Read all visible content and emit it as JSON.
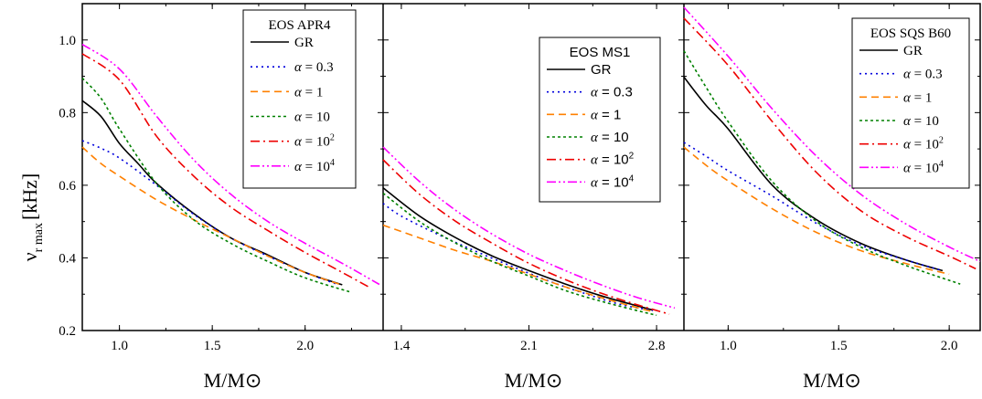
{
  "chart_data": {
    "type": "line",
    "ylabel": "ν",
    "ylabel_sub": "r max",
    "ylabel_unit": "[kHz]",
    "ylim": [
      0.2,
      1.1
    ],
    "yticks": [
      0.2,
      0.4,
      0.6,
      0.8,
      1.0
    ],
    "ytick_labels": [
      "0.2",
      "0.4",
      "0.6",
      "0.8",
      "1.0"
    ],
    "grid": false,
    "legend_position": "top-right",
    "style_defs": {
      "GR": {
        "color": "#000000",
        "dash": ""
      },
      "alpha_0.3": {
        "color": "#0000dd",
        "dash": "2,4"
      },
      "alpha_1": {
        "color": "#ff8000",
        "dash": "8,5"
      },
      "alpha_10": {
        "color": "#008000",
        "dash": "3,3"
      },
      "alpha_100": {
        "color": "#ee0000",
        "dash": "10,4,2,4"
      },
      "alpha_1e4": {
        "color": "#ff00ff",
        "dash": "10,3,2,3,2,3"
      }
    },
    "panels": [
      {
        "title": "EOS APR4",
        "xlabel": "M/M⊙",
        "xlim": [
          0.8,
          2.42
        ],
        "xticks": [
          1.0,
          1.5,
          2.0
        ],
        "xtick_labels": [
          "1.0",
          "1.5",
          "2.0"
        ],
        "legend_font": "serif",
        "series": [
          {
            "name": "GR",
            "style": "GR",
            "x": [
              0.8,
              0.9,
              1.0,
              1.1,
              1.2,
              1.4,
              1.6,
              1.8,
              2.0,
              2.2
            ],
            "y": [
              0.833,
              0.79,
              0.715,
              0.66,
              0.605,
              0.522,
              0.455,
              0.408,
              0.36,
              0.326
            ]
          },
          {
            "name": "α = 0.3",
            "style": "alpha_0.3",
            "x": [
              0.8,
              0.9,
              1.0,
              1.2,
              1.4,
              1.6,
              1.8,
              2.0,
              2.18
            ],
            "y": [
              0.723,
              0.702,
              0.675,
              0.6,
              0.52,
              0.455,
              0.405,
              0.36,
              0.326
            ]
          },
          {
            "name": "α = 1",
            "style": "alpha_1",
            "x": [
              0.8,
              0.9,
              1.0,
              1.2,
              1.4,
              1.6,
              1.8,
              2.0,
              2.2
            ],
            "y": [
              0.705,
              0.66,
              0.625,
              0.56,
              0.505,
              0.455,
              0.405,
              0.36,
              0.325
            ]
          },
          {
            "name": "α = 10",
            "style": "alpha_10",
            "x": [
              0.8,
              0.9,
              1.0,
              1.2,
              1.4,
              1.6,
              1.8,
              2.0,
              2.25
            ],
            "y": [
              0.895,
              0.84,
              0.755,
              0.605,
              0.505,
              0.44,
              0.39,
              0.345,
              0.305
            ]
          },
          {
            "name": "α = 10^2",
            "style": "alpha_100",
            "x": [
              0.8,
              1.0,
              1.2,
              1.4,
              1.6,
              1.8,
              2.0,
              2.2,
              2.35
            ],
            "y": [
              0.962,
              0.89,
              0.735,
              0.625,
              0.54,
              0.475,
              0.415,
              0.36,
              0.318
            ]
          },
          {
            "name": "α = 10^4",
            "style": "alpha_1e4",
            "x": [
              0.8,
              1.0,
              1.2,
              1.4,
              1.6,
              1.8,
              2.0,
              2.2,
              2.4
            ],
            "y": [
              0.988,
              0.92,
              0.79,
              0.67,
              0.575,
              0.5,
              0.44,
              0.385,
              0.327
            ]
          }
        ]
      },
      {
        "title": "EOS MS1",
        "xlabel": "M/M⊙",
        "xlim": [
          1.3,
          2.95
        ],
        "xticks": [
          1.4,
          2.1,
          2.8
        ],
        "xtick_labels": [
          "1.4",
          "2.1",
          "2.8"
        ],
        "legend_font": "sans",
        "series": [
          {
            "name": "GR",
            "style": "GR",
            "x": [
              1.3,
              1.5,
              1.7,
              1.9,
              2.1,
              2.3,
              2.5,
              2.7,
              2.78
            ],
            "y": [
              0.593,
              0.515,
              0.455,
              0.405,
              0.365,
              0.328,
              0.295,
              0.267,
              0.256
            ]
          },
          {
            "name": "α = 0.3",
            "style": "alpha_0.3",
            "x": [
              1.3,
              1.4,
              1.6,
              1.8,
              2.0,
              2.2,
              2.4,
              2.6,
              2.78
            ],
            "y": [
              0.55,
              0.515,
              0.465,
              0.42,
              0.378,
              0.338,
              0.303,
              0.272,
              0.255
            ]
          },
          {
            "name": "α = 1",
            "style": "alpha_1",
            "x": [
              1.3,
              1.5,
              1.7,
              1.9,
              2.1,
              2.3,
              2.5,
              2.7,
              2.78
            ],
            "y": [
              0.49,
              0.455,
              0.42,
              0.39,
              0.355,
              0.32,
              0.29,
              0.262,
              0.252
            ]
          },
          {
            "name": "α = 10",
            "style": "alpha_10",
            "x": [
              1.3,
              1.5,
              1.7,
              1.9,
              2.1,
              2.3,
              2.5,
              2.7,
              2.8
            ],
            "y": [
              0.578,
              0.5,
              0.44,
              0.39,
              0.35,
              0.31,
              0.28,
              0.254,
              0.242
            ]
          },
          {
            "name": "α = 10^2",
            "style": "alpha_100",
            "x": [
              1.3,
              1.5,
              1.7,
              1.9,
              2.1,
              2.3,
              2.5,
              2.7,
              2.87
            ],
            "y": [
              0.67,
              0.575,
              0.5,
              0.44,
              0.385,
              0.34,
              0.302,
              0.27,
              0.245
            ]
          },
          {
            "name": "α = 10^4",
            "style": "alpha_1e4",
            "x": [
              1.3,
              1.5,
              1.7,
              1.9,
              2.1,
              2.3,
              2.5,
              2.7,
              2.9
            ],
            "y": [
              0.705,
              0.61,
              0.53,
              0.465,
              0.41,
              0.365,
              0.325,
              0.29,
              0.262
            ]
          }
        ]
      },
      {
        "title": "EOS SQS B60",
        "xlabel": "M/M⊙",
        "xlim": [
          0.8,
          2.14
        ],
        "xticks": [
          1.0,
          1.5,
          2.0
        ],
        "xtick_labels": [
          "1.0",
          "1.5",
          "2.0"
        ],
        "legend_font": "serif",
        "series": [
          {
            "name": "GR",
            "style": "GR",
            "x": [
              0.8,
              0.9,
              1.0,
              1.2,
              1.4,
              1.6,
              1.8,
              1.97
            ],
            "y": [
              0.898,
              0.82,
              0.755,
              0.6,
              0.505,
              0.44,
              0.395,
              0.365
            ]
          },
          {
            "name": "α = 0.3",
            "style": "alpha_0.3",
            "x": [
              0.8,
              0.9,
              1.0,
              1.2,
              1.4,
              1.6,
              1.8,
              1.97
            ],
            "y": [
              0.718,
              0.68,
              0.64,
              0.57,
              0.495,
              0.435,
              0.395,
              0.365
            ]
          },
          {
            "name": "α = 1",
            "style": "alpha_1",
            "x": [
              0.8,
              0.9,
              1.0,
              1.2,
              1.4,
              1.6,
              1.8,
              2.0
            ],
            "y": [
              0.705,
              0.655,
              0.612,
              0.535,
              0.47,
              0.42,
              0.385,
              0.355
            ]
          },
          {
            "name": "α = 10",
            "style": "alpha_10",
            "x": [
              0.8,
              0.9,
              1.0,
              1.2,
              1.4,
              1.6,
              1.8,
              2.05
            ],
            "y": [
              0.97,
              0.87,
              0.775,
              0.61,
              0.5,
              0.43,
              0.38,
              0.328
            ]
          },
          {
            "name": "α = 10^2",
            "style": "alpha_100",
            "x": [
              0.8,
              1.0,
              1.2,
              1.4,
              1.6,
              1.8,
              2.0,
              2.12
            ],
            "y": [
              1.06,
              0.93,
              0.775,
              0.635,
              0.53,
              0.46,
              0.405,
              0.37
            ]
          },
          {
            "name": "α = 10^4",
            "style": "alpha_1e4",
            "x": [
              0.8,
              1.0,
              1.2,
              1.4,
              1.6,
              1.8,
              2.0,
              2.14
            ],
            "y": [
              1.09,
              0.955,
              0.81,
              0.68,
              0.575,
              0.495,
              0.43,
              0.39
            ]
          }
        ]
      }
    ]
  }
}
